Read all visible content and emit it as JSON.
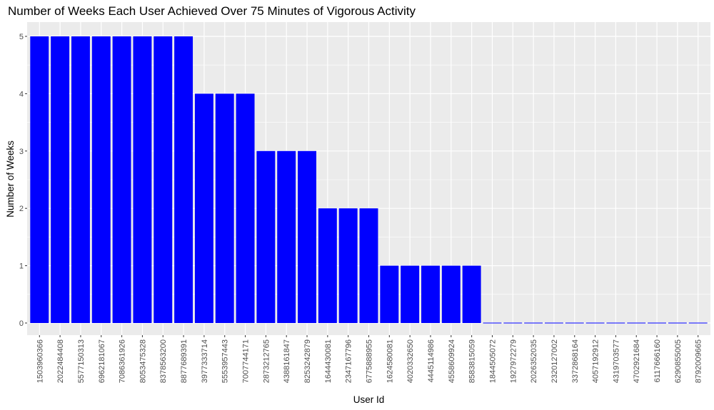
{
  "chart_data": {
    "type": "bar",
    "title": "Number of Weeks Each User Achieved Over 75 Minutes of Vigorous Activity",
    "xlabel": "User Id",
    "ylabel": "Number of Weeks",
    "ylim": [
      0,
      5
    ],
    "yticks": [
      "0",
      "1",
      "2",
      "3",
      "4",
      "5"
    ],
    "grid": true,
    "bar_color": "#0000ff",
    "panel_background": "#ebebeb",
    "grid_color": "#ffffff",
    "categories": [
      "1503960366",
      "2022484408",
      "5577150313",
      "6962181067",
      "7086361926",
      "8053475328",
      "8378563200",
      "8877689391",
      "3977333714",
      "5553957443",
      "7007744171",
      "2873212765",
      "4388161847",
      "8253242879",
      "1644430081",
      "2347167796",
      "6775888955",
      "1624580081",
      "4020332650",
      "4445114986",
      "4558609924",
      "8583815059",
      "1844505072",
      "1927972279",
      "2026352035",
      "2320127002",
      "3372868164",
      "4057192912",
      "4319703577",
      "4702921684",
      "6117666160",
      "6290855005",
      "8792009665"
    ],
    "values": [
      5,
      5,
      5,
      5,
      5,
      5,
      5,
      5,
      4,
      4,
      4,
      3,
      3,
      3,
      2,
      2,
      2,
      1,
      1,
      1,
      1,
      1,
      0,
      0,
      0,
      0,
      0,
      0,
      0,
      0,
      0,
      0,
      0
    ]
  }
}
